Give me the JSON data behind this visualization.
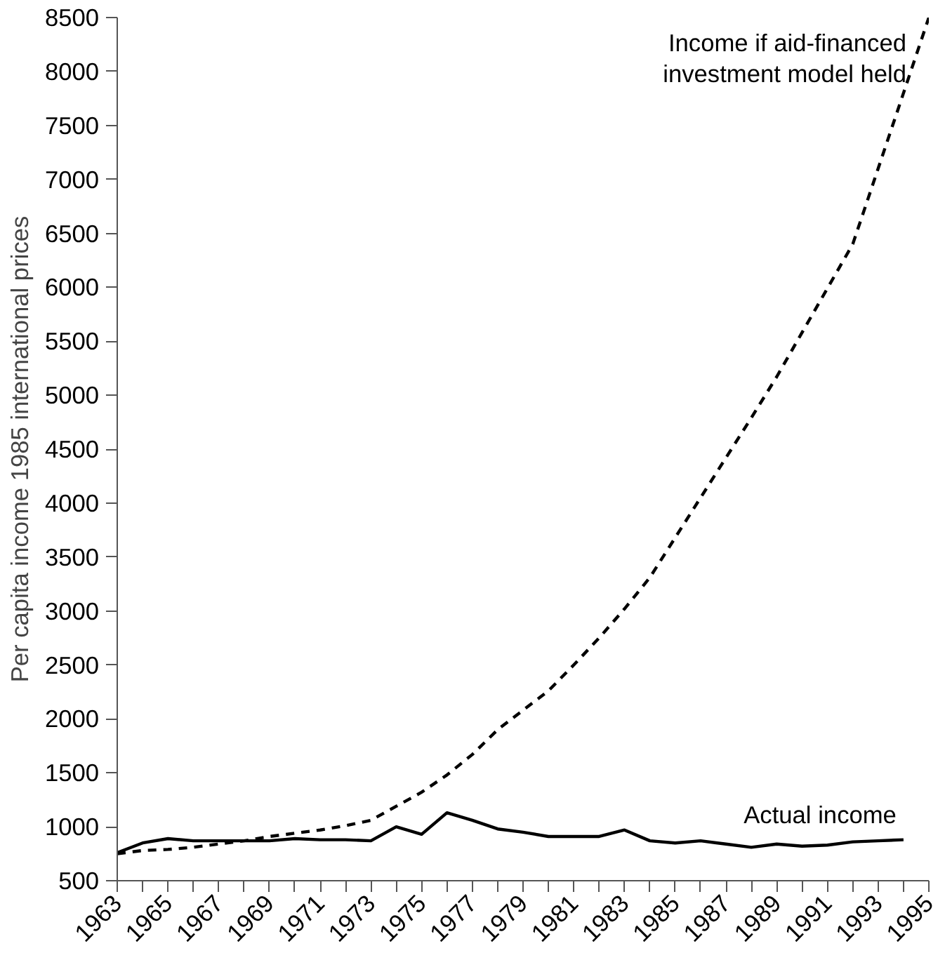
{
  "chart_data": {
    "type": "line",
    "ylabel": "Per capita income 1985 international prices",
    "x": [
      1963,
      1964,
      1965,
      1966,
      1967,
      1968,
      1969,
      1970,
      1971,
      1972,
      1973,
      1974,
      1975,
      1976,
      1977,
      1978,
      1979,
      1980,
      1981,
      1982,
      1983,
      1984,
      1985,
      1986,
      1987,
      1988,
      1989,
      1990,
      1991,
      1992,
      1993,
      1994,
      1995
    ],
    "series": [
      {
        "name": "Income if aid-financed\ninvestment model held",
        "color": "#000000",
        "line_style": "dashed",
        "values": [
          750,
          780,
          790,
          810,
          840,
          870,
          910,
          940,
          970,
          1010,
          1060,
          1190,
          1320,
          1480,
          1670,
          1900,
          2080,
          2260,
          2500,
          2750,
          3020,
          3310,
          3680,
          4050,
          4420,
          4790,
          5170,
          5580,
          5990,
          6400,
          7100,
          7800,
          8500
        ]
      },
      {
        "name": "Actual income",
        "color": "#000000",
        "line_style": "solid",
        "values": [
          760,
          850,
          890,
          870,
          870,
          870,
          870,
          890,
          880,
          880,
          870,
          1000,
          930,
          1130,
          1060,
          980,
          950,
          910,
          910,
          910,
          970,
          870,
          850,
          870,
          840,
          810,
          840,
          820,
          830,
          860,
          870,
          880,
          null
        ]
      }
    ],
    "xlim": [
      1963,
      1995
    ],
    "xticks": [
      1963,
      {
        "value": 1964,
        "label": null
      },
      1965,
      {
        "value": 1966,
        "label": null
      },
      1967,
      {
        "value": 1968,
        "label": null
      },
      1969,
      {
        "value": 1970,
        "label": null
      },
      1971,
      {
        "value": 1972,
        "label": null
      },
      1973,
      {
        "value": 1974,
        "label": null
      },
      1975,
      {
        "value": 1976,
        "label": null
      },
      1977,
      {
        "value": 1978,
        "label": null
      },
      1979,
      {
        "value": 1980,
        "label": null
      },
      1981,
      {
        "value": 1982,
        "label": null
      },
      1983,
      {
        "value": 1984,
        "label": null
      },
      1985,
      {
        "value": 1986,
        "label": null
      },
      1987,
      {
        "value": 1988,
        "label": null
      },
      1989,
      {
        "value": 1990,
        "label": null
      },
      1991,
      {
        "value": 1992,
        "label": null
      },
      1993,
      {
        "value": 1994,
        "label": null
      },
      1995
    ],
    "ylim": [
      500,
      8500
    ],
    "yticks": [
      500,
      1000,
      1500,
      2000,
      2500,
      3000,
      3500,
      4000,
      4500,
      5000,
      5500,
      6000,
      6500,
      7000,
      7500,
      8000,
      8500
    ],
    "grid": false,
    "legend": false,
    "marker": "none"
  }
}
